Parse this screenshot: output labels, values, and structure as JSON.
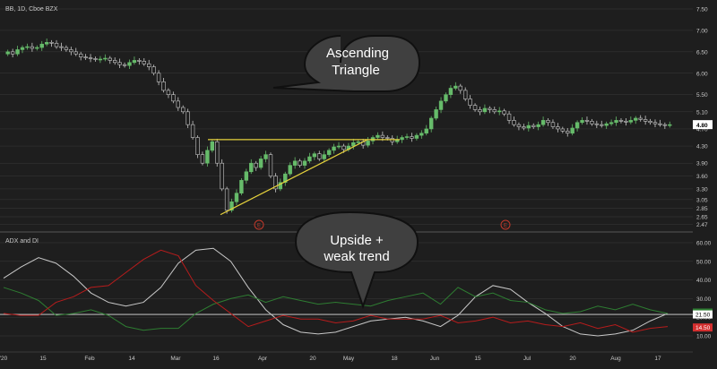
{
  "header": {
    "symbol_label": "BB, 1D, Cboe BZX"
  },
  "indicator": {
    "title": "ADX and DI"
  },
  "callouts": {
    "top": [
      "Ascending",
      "Triangle"
    ],
    "bottom": [
      "Upside +",
      "weak trend"
    ]
  },
  "colors": {
    "background": "#1e1e1e",
    "up_candle": "#66bb6a",
    "down_candle": "#c8c8c8",
    "triangle": "#e6d23c",
    "adx": "#c8c8c8",
    "di_plus": "#2e7d32",
    "di_minus": "#b71c1c",
    "earnings": "#c0392b",
    "grid": "#3a3a3a",
    "callout_fill": "#404040"
  },
  "chart_data": [
    {
      "type": "candlestick",
      "title": "BB, 1D, Cboe BZX",
      "x_ticks": [
        "'20",
        "15",
        "Feb",
        "14",
        "Mar",
        "16",
        "Apr",
        "20",
        "May",
        "18",
        "Jun",
        "15",
        "Jul",
        "20",
        "Aug",
        "17"
      ],
      "y_ticks": [
        "7.50",
        "7.00",
        "6.50",
        "6.00",
        "5.50",
        "5.10",
        "4.70",
        "4.30",
        "3.90",
        "3.60",
        "3.30",
        "3.05",
        "2.85",
        "2.65",
        "2.47"
      ],
      "ylim": [
        2.47,
        7.5
      ],
      "last_price": "4.80",
      "earnings_markers": [
        "E",
        "E"
      ],
      "closes": [
        6.5,
        6.45,
        6.55,
        6.6,
        6.62,
        6.58,
        6.6,
        6.68,
        6.72,
        6.7,
        6.62,
        6.6,
        6.55,
        6.5,
        6.45,
        6.38,
        6.36,
        6.34,
        6.32,
        6.33,
        6.35,
        6.3,
        6.25,
        6.2,
        6.18,
        6.25,
        6.3,
        6.28,
        6.22,
        6.15,
        6.0,
        5.8,
        5.6,
        5.5,
        5.35,
        5.2,
        5.1,
        4.8,
        4.5,
        4.1,
        3.9,
        4.2,
        4.4,
        3.9,
        3.3,
        2.8,
        3.0,
        3.2,
        3.5,
        3.7,
        3.9,
        3.8,
        4.0,
        4.1,
        3.6,
        3.3,
        3.45,
        3.65,
        3.85,
        3.95,
        3.85,
        3.95,
        4.05,
        4.12,
        4.0,
        4.1,
        4.2,
        4.28,
        4.3,
        4.22,
        4.3,
        4.38,
        4.4,
        4.32,
        4.42,
        4.5,
        4.55,
        4.5,
        4.48,
        4.4,
        4.45,
        4.5,
        4.52,
        4.48,
        4.55,
        4.6,
        4.7,
        4.95,
        5.15,
        5.35,
        5.5,
        5.65,
        5.7,
        5.6,
        5.4,
        5.25,
        5.15,
        5.1,
        5.18,
        5.15,
        5.1,
        5.12,
        5.05,
        4.9,
        4.8,
        4.75,
        4.72,
        4.78,
        4.75,
        4.8,
        4.9,
        4.85,
        4.75,
        4.7,
        4.65,
        4.6,
        4.72,
        4.85,
        4.9,
        4.88,
        4.82,
        4.8,
        4.78,
        4.82,
        4.85,
        4.9,
        4.88,
        4.86,
        4.9,
        4.95,
        4.92,
        4.88,
        4.85,
        4.82,
        4.8,
        4.78,
        4.8
      ],
      "triangle": {
        "resistance": 4.45,
        "support_start": 2.7,
        "support_end": 4.45
      }
    },
    {
      "type": "line",
      "title": "ADX and DI",
      "y_ticks": [
        "60.00",
        "50.00",
        "40.00",
        "30.00",
        "20.00",
        "10.00"
      ],
      "ylim": [
        5,
        65
      ],
      "last_values": {
        "adx": "21.50",
        "di_plus": "22.52",
        "di_minus": "14.50"
      },
      "level_line": 21.5,
      "series": [
        {
          "key": "adx",
          "values": [
            41,
            47,
            52,
            49,
            42,
            33,
            28,
            26,
            28,
            36,
            49,
            56,
            57,
            50,
            36,
            24,
            16,
            12,
            11,
            12,
            15,
            18,
            19,
            20,
            18,
            15,
            21,
            31,
            37,
            35,
            28,
            22,
            15,
            11,
            10,
            11,
            13,
            18,
            22
          ]
        },
        {
          "key": "di_plus",
          "values": [
            36,
            33,
            29,
            21,
            22,
            24,
            21,
            15,
            13,
            14,
            14,
            22,
            27,
            30,
            32,
            28,
            31,
            29,
            27,
            28,
            27,
            26,
            29,
            31,
            33,
            27,
            36,
            31,
            33,
            29,
            28,
            24,
            22,
            23,
            26,
            24,
            27,
            24,
            22
          ]
        },
        {
          "key": "di_minus",
          "values": [
            22,
            21,
            21,
            28,
            31,
            36,
            37,
            44,
            51,
            56,
            53,
            37,
            29,
            22,
            15,
            18,
            21,
            19,
            19,
            17,
            18,
            21,
            19,
            19,
            19,
            21,
            17,
            18,
            20,
            17,
            18,
            16,
            15,
            17,
            14,
            16,
            12,
            14,
            15
          ]
        }
      ]
    }
  ]
}
